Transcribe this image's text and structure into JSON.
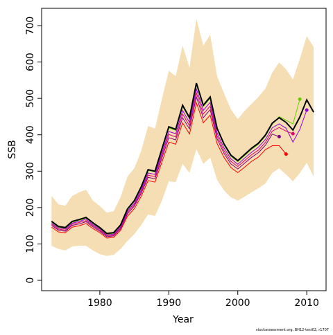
{
  "chart_data": {
    "type": "line",
    "xlabel": "Year",
    "ylabel": "SSB",
    "footnote": "stockassessment.org, BH12-test02, r1707",
    "x": [
      1973,
      1974,
      1975,
      1976,
      1977,
      1978,
      1979,
      1980,
      1981,
      1982,
      1983,
      1984,
      1985,
      1986,
      1987,
      1988,
      1989,
      1990,
      1991,
      1992,
      1993,
      1994,
      1995,
      1996,
      1997,
      1998,
      1999,
      2000,
      2001,
      2002,
      2003,
      2004,
      2005,
      2006,
      2007,
      2008,
      2009,
      2010,
      2011
    ],
    "xlim": [
      1971.56,
      2012.8
    ],
    "ylim": [
      -28.5,
      747.6
    ],
    "xticks": [
      1980,
      1990,
      2000,
      2010
    ],
    "yticks": [
      0,
      100,
      200,
      300,
      400,
      500,
      600,
      700
    ],
    "band": {
      "color": "#f5deb3",
      "upper": [
        232,
        209,
        205,
        232,
        242,
        249,
        219,
        204,
        186,
        190,
        228,
        285,
        308,
        356,
        424,
        417,
        498,
        576,
        561,
        645,
        584,
        719,
        645,
        675,
        561,
        514,
        470,
        443,
        466,
        485,
        504,
        527,
        571,
        599,
        580,
        552,
        609,
        671,
        641
      ],
      "lower": [
        95,
        86,
        82,
        93,
        95,
        95,
        82,
        72,
        67,
        70,
        86,
        108,
        127,
        152,
        181,
        177,
        219,
        272,
        270,
        320,
        295,
        361,
        320,
        337,
        276,
        247,
        228,
        219,
        230,
        242,
        253,
        266,
        295,
        308,
        291,
        272,
        295,
        323,
        285
      ]
    },
    "series": [
      {
        "color": "#ff0000",
        "values": [
          146,
          133,
          131,
          146,
          150,
          156,
          142,
          131,
          116,
          118,
          137,
          176,
          197,
          231,
          274,
          270,
          325,
          380,
          374,
          433,
          402,
          488,
          433,
          454,
          376,
          338,
          310,
          296,
          311,
          327,
          339,
          359,
          370,
          370,
          347,
          null,
          null,
          null,
          null
        ]
      },
      {
        "color": "#800080",
        "values": [
          151,
          138,
          135,
          151,
          155,
          161,
          147,
          135,
          120,
          122,
          141,
          182,
          204,
          239,
          283,
          279,
          336,
          392,
          386,
          447,
          416,
          504,
          447,
          469,
          389,
          349,
          320,
          306,
          322,
          338,
          351,
          371,
          402,
          395,
          null,
          null,
          null,
          null,
          null
        ]
      },
      {
        "color": "#e0006e",
        "values": [
          154,
          141,
          138,
          154,
          159,
          164,
          150,
          138,
          123,
          124,
          144,
          186,
          208,
          244,
          289,
          285,
          343,
          401,
          394,
          457,
          425,
          515,
          457,
          479,
          397,
          356,
          327,
          313,
          329,
          345,
          358,
          379,
          410,
          420,
          410,
          403,
          null,
          null,
          null
        ]
      },
      {
        "color": "#9400d3",
        "values": [
          157,
          144,
          141,
          157,
          162,
          168,
          153,
          141,
          125,
          127,
          147,
          190,
          212,
          249,
          295,
          291,
          350,
          409,
          403,
          467,
          434,
          526,
          467,
          489,
          405,
          364,
          334,
          319,
          336,
          352,
          366,
          387,
          419,
          430,
          418,
          380,
          415,
          468,
          null
        ]
      },
      {
        "color": "#66cc00",
        "values": [
          160,
          146,
          143,
          160,
          165,
          171,
          156,
          143,
          127,
          129,
          150,
          194,
          217,
          255,
          302,
          298,
          359,
          419,
          412,
          478,
          444,
          538,
          478,
          500,
          415,
          372,
          341,
          326,
          343,
          360,
          374,
          396,
          429,
          450,
          440,
          430,
          498,
          null,
          null
        ]
      },
      {
        "color": "#000000",
        "width": 2,
        "values": [
          162,
          148,
          145,
          162,
          167,
          173,
          158,
          145,
          129,
          131,
          152,
          196,
          219,
          257,
          304,
          300,
          361,
          422,
          415,
          481,
          447,
          542,
          481,
          504,
          418,
          375,
          344,
          329,
          346,
          363,
          377,
          399,
          432,
          447,
          434,
          413,
          449,
          496,
          462
        ]
      }
    ]
  }
}
